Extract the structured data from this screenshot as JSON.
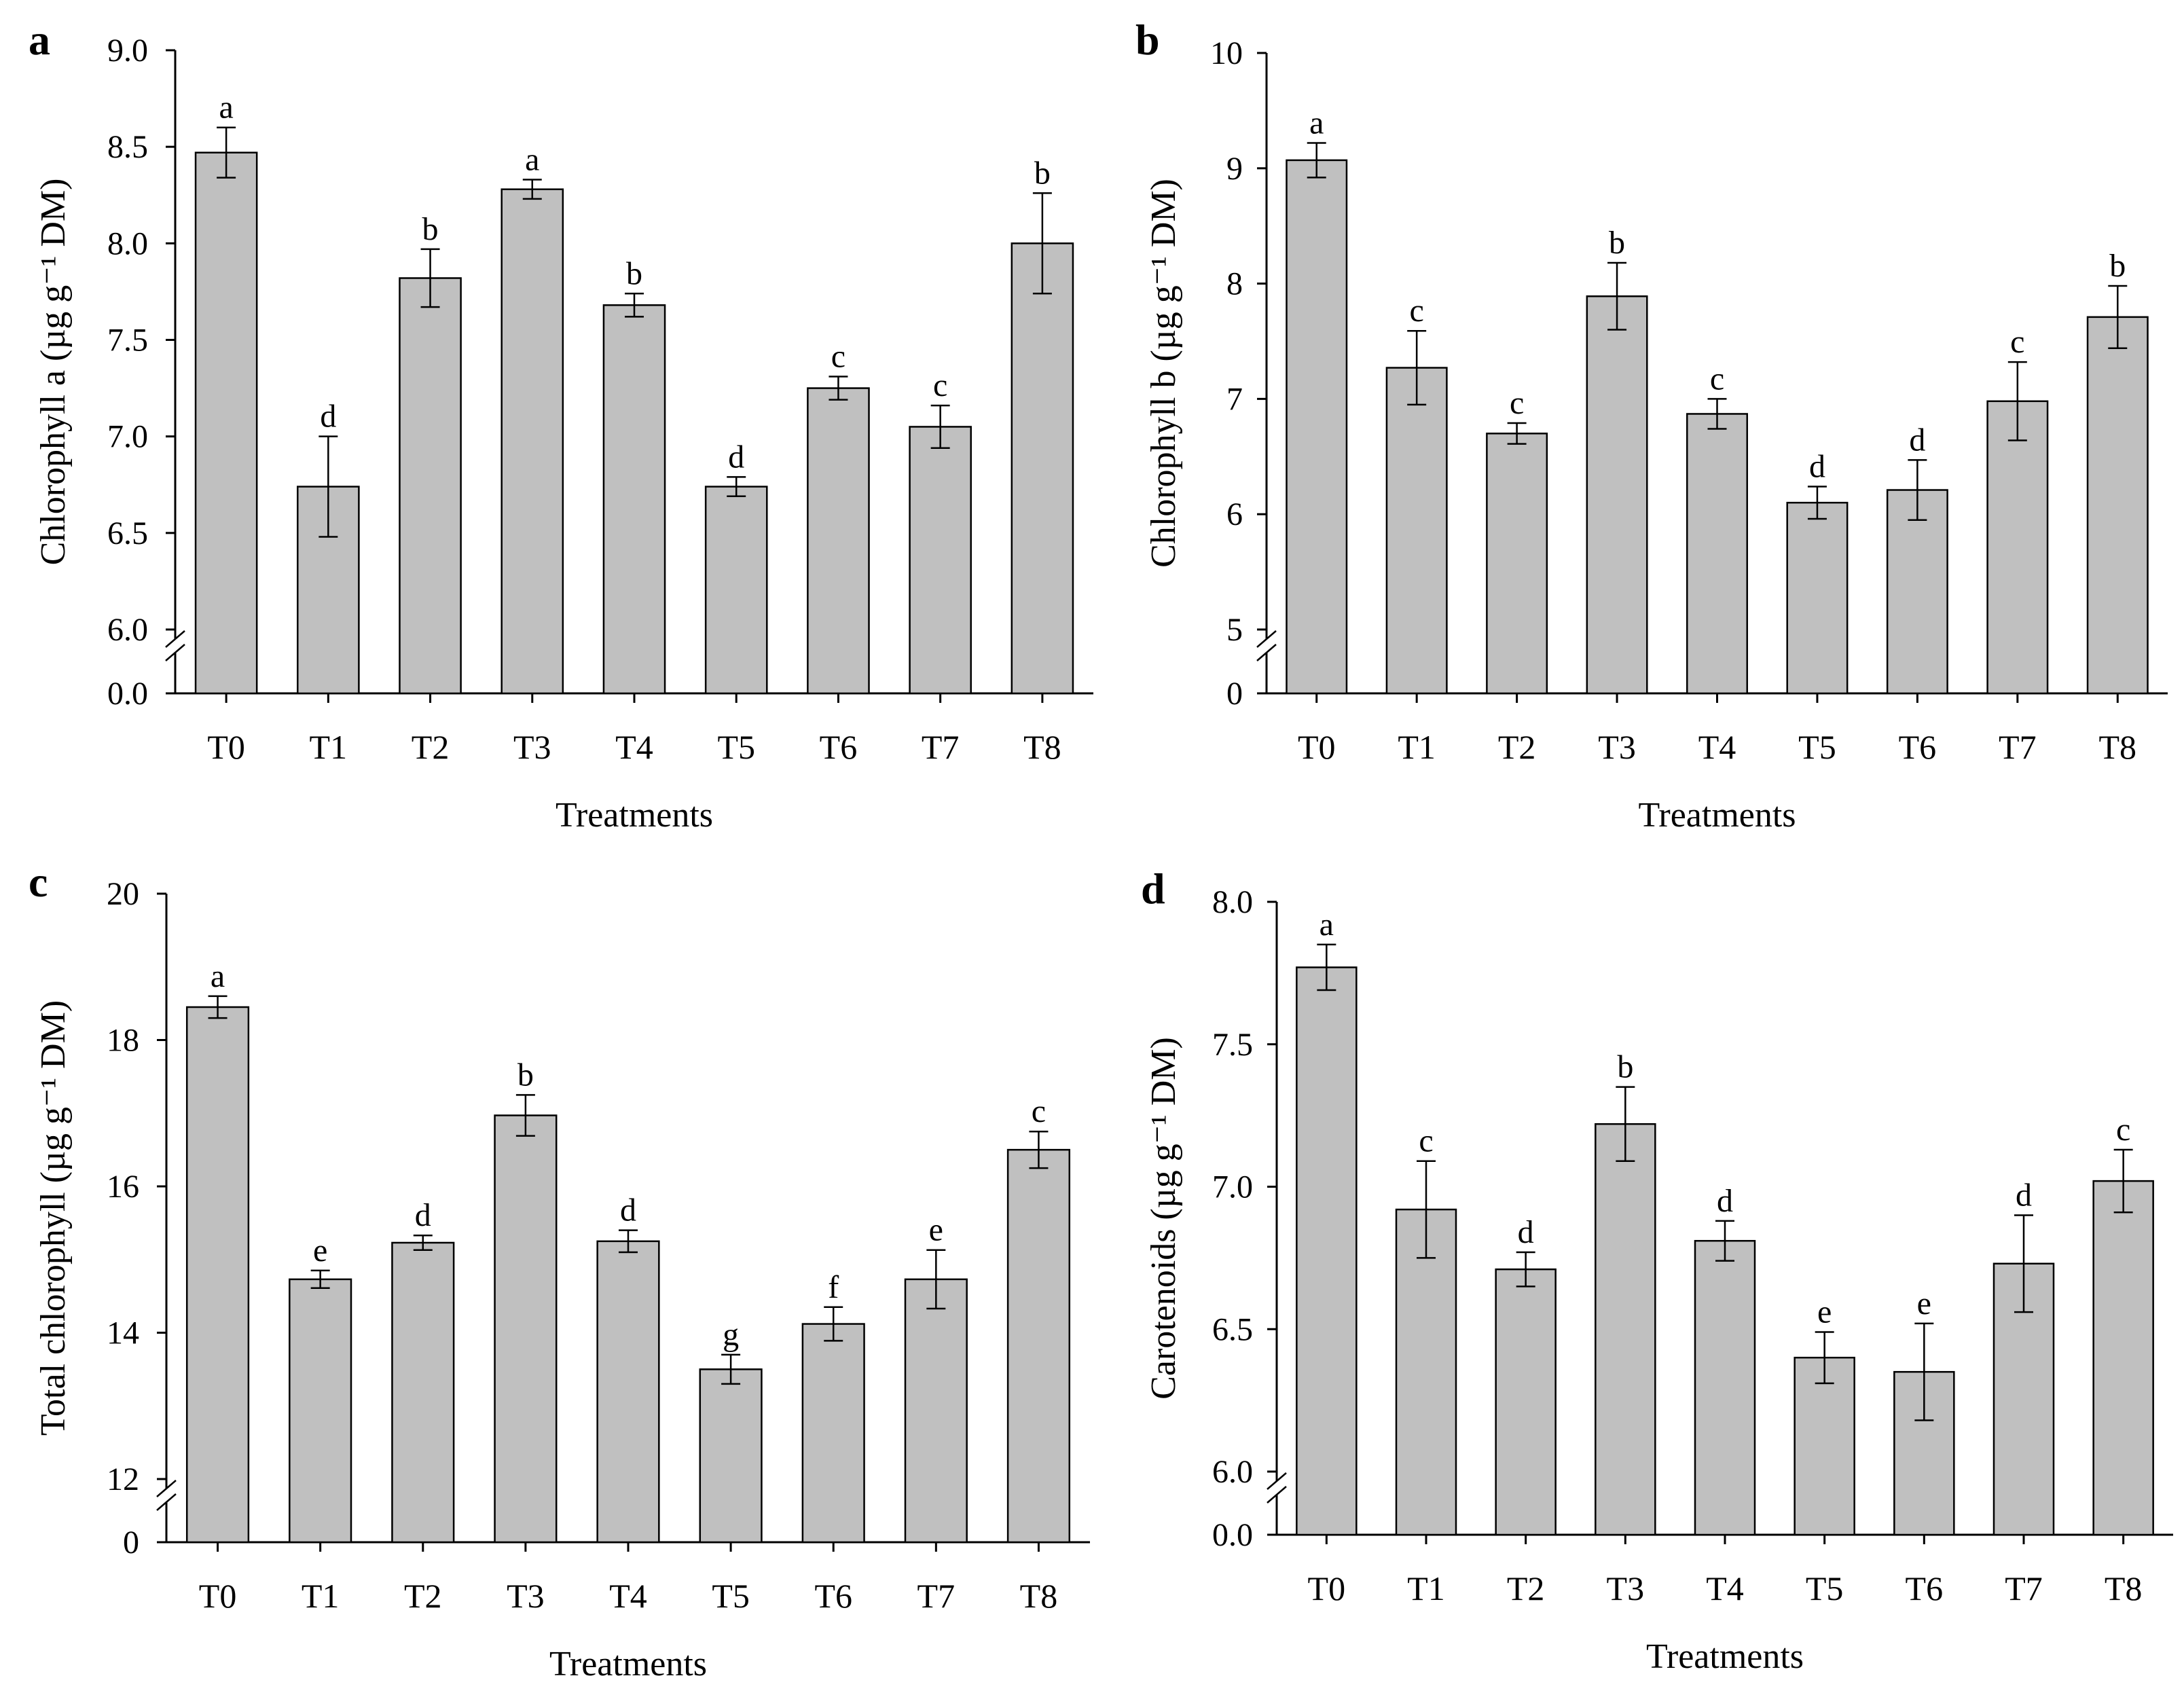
{
  "figure": {
    "axis_x_label": "Treatments",
    "bar_color": "#c0c0c0",
    "edge_color": "#000000"
  },
  "chart_data": [
    {
      "panel": "a",
      "type": "bar",
      "ylabel": "Chlorophyll a (µg g⁻¹ DM)",
      "xlabel": "Treatments",
      "categories": [
        "T0",
        "T1",
        "T2",
        "T3",
        "T4",
        "T5",
        "T6",
        "T7",
        "T8"
      ],
      "values": [
        8.47,
        6.74,
        7.82,
        8.28,
        7.68,
        6.74,
        7.25,
        7.05,
        8.0
      ],
      "errors": [
        0.13,
        0.26,
        0.15,
        0.05,
        0.06,
        0.05,
        0.06,
        0.11,
        0.26
      ],
      "letters": [
        "a",
        "d",
        "b",
        "a",
        "b",
        "d",
        "c",
        "c",
        "b"
      ],
      "ylim": [
        6.0,
        9.0
      ],
      "y_ticks": [
        6.0,
        6.5,
        7.0,
        7.5,
        8.0,
        8.5,
        9.0
      ],
      "y_tick_labels": [
        "6.0",
        "6.5",
        "7.0",
        "7.5",
        "8.0",
        "8.5",
        "9.0"
      ],
      "y_zero_label": "0.0",
      "axis_break": true
    },
    {
      "panel": "b",
      "type": "bar",
      "ylabel": "Chlorophyll b (µg g⁻¹ DM)",
      "xlabel": "Treatments",
      "categories": [
        "T0",
        "T1",
        "T2",
        "T3",
        "T4",
        "T5",
        "T6",
        "T7",
        "T8"
      ],
      "values": [
        9.07,
        7.27,
        6.7,
        7.89,
        6.87,
        6.1,
        6.21,
        6.98,
        7.71
      ],
      "errors": [
        0.15,
        0.32,
        0.09,
        0.29,
        0.13,
        0.14,
        0.26,
        0.34,
        0.27
      ],
      "letters": [
        "a",
        "c",
        "c",
        "b",
        "c",
        "d",
        "d",
        "c",
        "b"
      ],
      "ylim": [
        5,
        10
      ],
      "y_ticks": [
        5,
        6,
        7,
        8,
        9,
        10
      ],
      "y_tick_labels": [
        "5",
        "6",
        "7",
        "8",
        "9",
        "10"
      ],
      "y_zero_label": "0",
      "axis_break": true
    },
    {
      "panel": "c",
      "type": "bar",
      "ylabel": "Total chlorophyll (µg g⁻¹ DM)",
      "xlabel": "Treatments",
      "categories": [
        "T0",
        "T1",
        "T2",
        "T3",
        "T4",
        "T5",
        "T6",
        "T7",
        "T8"
      ],
      "values": [
        18.45,
        14.73,
        15.23,
        16.97,
        15.25,
        13.5,
        14.12,
        14.73,
        16.5
      ],
      "errors": [
        0.15,
        0.12,
        0.1,
        0.28,
        0.15,
        0.2,
        0.23,
        0.4,
        0.25
      ],
      "letters": [
        "a",
        "e",
        "d",
        "b",
        "d",
        "g",
        "f",
        "e",
        "c"
      ],
      "ylim": [
        12,
        20
      ],
      "y_ticks": [
        12,
        14,
        16,
        18,
        20
      ],
      "y_tick_labels": [
        "12",
        "14",
        "16",
        "18",
        "20"
      ],
      "y_zero_label": "0",
      "axis_break": true
    },
    {
      "panel": "d",
      "type": "bar",
      "ylabel": "Carotenoids (µg g⁻¹ DM)",
      "xlabel": "Treatments",
      "categories": [
        "T0",
        "T1",
        "T2",
        "T3",
        "T4",
        "T5",
        "T6",
        "T7",
        "T8"
      ],
      "values": [
        7.77,
        6.92,
        6.71,
        7.22,
        6.81,
        6.4,
        6.35,
        6.73,
        7.02
      ],
      "errors": [
        0.08,
        0.17,
        0.06,
        0.13,
        0.07,
        0.09,
        0.17,
        0.17,
        0.11
      ],
      "letters": [
        "a",
        "c",
        "d",
        "b",
        "d",
        "e",
        "e",
        "d",
        "c"
      ],
      "ylim": [
        6.0,
        8.0
      ],
      "y_ticks": [
        6.0,
        6.5,
        7.0,
        7.5,
        8.0
      ],
      "y_tick_labels": [
        "6.0",
        "6.5",
        "7.0",
        "7.5",
        "8.0"
      ],
      "y_zero_label": "0.0",
      "axis_break": true
    }
  ]
}
